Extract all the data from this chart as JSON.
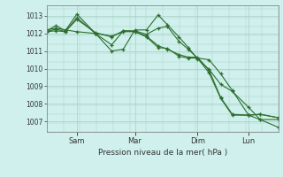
{
  "bg_color": "#cff0ec",
  "grid_color": "#a8cfc8",
  "line_color": "#2d6e2d",
  "xlabel": "Pression niveau de la mer( hPa )",
  "ylim": [
    1006.4,
    1013.6
  ],
  "yticks": [
    1007,
    1008,
    1009,
    1010,
    1011,
    1012,
    1013
  ],
  "xtick_labels": [
    "Sam",
    "Mar",
    "Dim",
    "Lun"
  ],
  "xtick_positions": [
    0.13,
    0.38,
    0.65,
    0.87
  ],
  "series": [
    [
      0.0,
      1012.15,
      0.04,
      1012.45,
      0.08,
      1012.15,
      0.13,
      1013.1,
      0.21,
      1012.0,
      0.28,
      1011.0,
      0.33,
      1011.1,
      0.38,
      1012.2,
      0.43,
      1012.2,
      0.48,
      1013.05,
      0.52,
      1012.5,
      0.57,
      1011.8,
      0.61,
      1011.2,
      0.65,
      1010.55,
      0.7,
      1009.95,
      0.75,
      1009.1,
      0.8,
      1008.7,
      0.87,
      1007.8,
      0.92,
      1007.1,
      1.0,
      1007.1
    ],
    [
      0.0,
      1012.1,
      0.04,
      1012.25,
      0.08,
      1012.1,
      0.13,
      1012.9,
      0.21,
      1012.0,
      0.28,
      1011.35,
      0.33,
      1012.15,
      0.38,
      1012.15,
      0.43,
      1011.95,
      0.48,
      1012.3,
      0.52,
      1012.4,
      0.57,
      1011.55,
      0.61,
      1011.1,
      0.65,
      1010.6,
      0.7,
      1010.5,
      0.75,
      1009.7,
      0.8,
      1008.75,
      0.87,
      1007.35,
      0.92,
      1007.1,
      1.0,
      1006.65
    ],
    [
      0.0,
      1012.1,
      0.04,
      1012.15,
      0.08,
      1012.1,
      0.13,
      1012.8,
      0.21,
      1012.05,
      0.28,
      1011.8,
      0.33,
      1012.15,
      0.38,
      1012.1,
      0.43,
      1011.85,
      0.48,
      1011.3,
      0.52,
      1011.1,
      0.57,
      1010.8,
      0.61,
      1010.65,
      0.65,
      1010.65,
      0.7,
      1009.9,
      0.75,
      1008.35,
      0.8,
      1007.4,
      0.87,
      1007.35,
      0.92,
      1007.4,
      1.0,
      1007.2
    ],
    [
      0.0,
      1012.2,
      0.04,
      1012.3,
      0.08,
      1012.2,
      0.13,
      1012.1,
      0.21,
      1012.0,
      0.28,
      1011.85,
      0.33,
      1012.1,
      0.38,
      1012.1,
      0.43,
      1011.8,
      0.48,
      1011.2,
      0.52,
      1011.15,
      0.57,
      1010.7,
      0.61,
      1010.6,
      0.65,
      1010.6,
      0.7,
      1009.75,
      0.75,
      1008.3,
      0.8,
      1007.35,
      0.87,
      1007.35,
      0.92,
      1007.4,
      1.0,
      1007.2
    ]
  ]
}
